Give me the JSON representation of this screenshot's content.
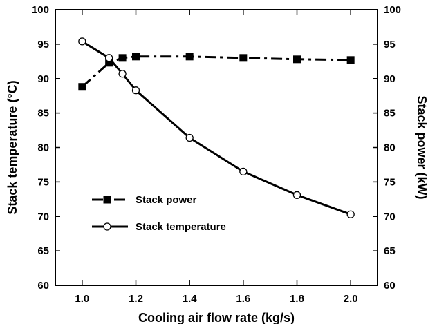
{
  "chart_data": {
    "type": "line",
    "title": "",
    "xlabel": "Cooling air flow rate (kg/s)",
    "ylabel_left": "Stack temperature (°C)",
    "ylabel_right": "Stack power (kW)",
    "xlim": [
      0.9,
      2.1
    ],
    "ylim_left": [
      60,
      100
    ],
    "ylim_right": [
      60,
      100
    ],
    "x_ticks": [
      "1.0",
      "1.2",
      "1.4",
      "1.6",
      "1.8",
      "2.0"
    ],
    "y_ticks": [
      "60",
      "65",
      "70",
      "75",
      "80",
      "85",
      "90",
      "95",
      "100"
    ],
    "grid": false,
    "legend_position": "lower-left",
    "series": [
      {
        "name": "Stack power",
        "axis": "right",
        "marker": "filled-square",
        "line_style": "dash-dot",
        "color": "#000000",
        "x": [
          1.0,
          1.1,
          1.15,
          1.2,
          1.4,
          1.6,
          1.8,
          2.0
        ],
        "y": [
          88.8,
          92.3,
          93.0,
          93.2,
          93.2,
          93.0,
          92.8,
          92.7
        ]
      },
      {
        "name": "Stack temperature",
        "axis": "left",
        "marker": "open-circle",
        "line_style": "solid",
        "color": "#000000",
        "x": [
          1.0,
          1.1,
          1.15,
          1.2,
          1.4,
          1.6,
          1.8,
          2.0
        ],
        "y": [
          95.4,
          93.0,
          90.7,
          88.3,
          81.4,
          76.5,
          73.1,
          70.3
        ]
      }
    ]
  }
}
